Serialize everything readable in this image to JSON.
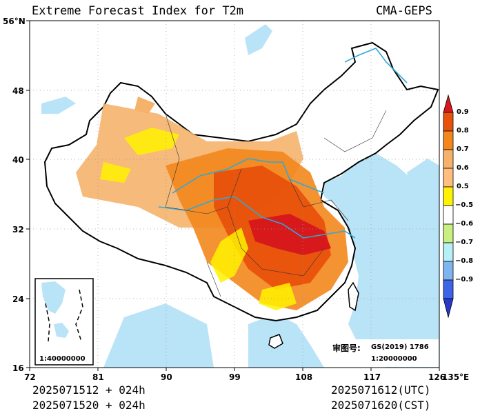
{
  "header": {
    "title": "Extreme Forecast Index for T2m",
    "source": "CMA-GEPS"
  },
  "axes": {
    "x_ticks": [
      "72",
      "81",
      "90",
      "99",
      "108",
      "117",
      "126",
      "135°E"
    ],
    "y_ticks": [
      "56°N",
      "48",
      "40",
      "32",
      "24",
      "16"
    ]
  },
  "colorbar": {
    "labels": [
      "0.9",
      "0.8",
      "0.7",
      "0.6",
      "0.5",
      "−0.5",
      "−0.6",
      "−0.7",
      "−0.8",
      "−0.9"
    ],
    "colors": [
      "#d7191c",
      "#e8510c",
      "#f3871c",
      "#f5b26b",
      "#fff200",
      "#ffffff",
      "#c8f080",
      "#b4f0f5",
      "#7eb4f0",
      "#3c64e6"
    ]
  },
  "inset": {
    "scale": "1:40000000"
  },
  "approval": {
    "label": "审图号:",
    "code": "GS(2019) 1786",
    "scale": "1:20000000"
  },
  "footer": {
    "left_line1": "2025071512 + 024h",
    "left_line2": "2025071520 + 024h",
    "right_line1": "2025071612(UTC)",
    "right_line2": "2025071620(CST)"
  }
}
